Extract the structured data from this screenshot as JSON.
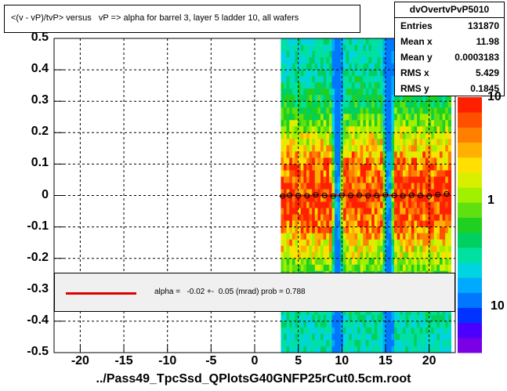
{
  "title": "<(v - vP)/tvP> versus   vP => alpha for barrel 3, layer 5 ladder 10, all wafers",
  "stats": {
    "name": "dvOvertvPvP5010",
    "rows": [
      {
        "label": "Entries",
        "value": "131870"
      },
      {
        "label": "Mean x",
        "value": "11.98"
      },
      {
        "label": "Mean y",
        "value": "0.0003183"
      },
      {
        "label": "RMS x",
        "value": "5.429"
      },
      {
        "label": "RMS y",
        "value": "0.1845"
      }
    ]
  },
  "fit": {
    "text": "alpha =   -0.02 +-  0.05 (mrad) prob = 0.788",
    "color": "#e00000"
  },
  "footer": "../Pass49_TpcSsd_QPlotsG40GNFP25rCut0.5cm.root",
  "chart_data": {
    "type": "heatmap",
    "xlim": [
      -23,
      23
    ],
    "ylim": [
      -0.5,
      0.5
    ],
    "x_ticks": [
      -20,
      -15,
      -10,
      -5,
      0,
      5,
      10,
      15,
      20
    ],
    "x_tick_labels": [
      "-20",
      "-15",
      "-10",
      "-5",
      "0",
      "5",
      "10",
      "15",
      "20"
    ],
    "y_ticks": [
      0.5,
      0.4,
      0.3,
      0.2,
      0.1,
      0,
      -0.1,
      -0.2,
      -0.3,
      -0.4,
      -0.5
    ],
    "y_tick_labels": [
      "0.5",
      "0.4",
      "0.3",
      "0.2",
      "0.1",
      "0",
      "-0.1",
      "-0.2",
      "-0.3",
      "-0.4",
      "-0.5"
    ],
    "z_scale": "log",
    "z_tick_labels": [
      "10",
      "1",
      "10"
    ],
    "data_x_range": [
      3.0,
      22.5
    ],
    "gaps_x": [
      9.5,
      15.3
    ],
    "profile": {
      "x": [
        3.2,
        4.0,
        5.0,
        6.0,
        7.0,
        8.0,
        9.0,
        10.0,
        11.0,
        12.0,
        13.0,
        14.0,
        15.0,
        16.0,
        17.0,
        18.0,
        19.0,
        20.0,
        21.0,
        22.0
      ],
      "y": [
        -0.002,
        0.001,
        0.0,
        -0.001,
        0.002,
        0.0,
        -0.002,
        0.001,
        0.0,
        0.001,
        -0.001,
        0.0,
        0.002,
        0.0,
        -0.001,
        0.001,
        0.0,
        -0.002,
        0.003,
        0.005
      ]
    },
    "fit_line": {
      "x": [
        3.0,
        22.5
      ],
      "y": [
        0.0,
        0.0
      ]
    },
    "grid": true
  }
}
